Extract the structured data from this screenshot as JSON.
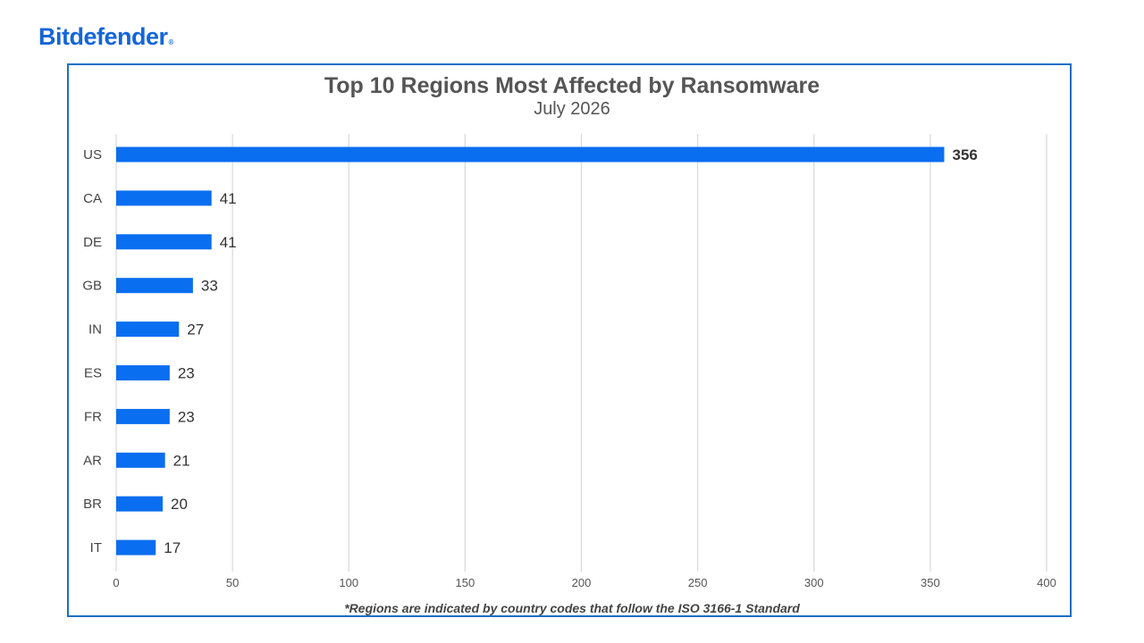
{
  "brand": {
    "name": "Bitdefender",
    "mark": "®",
    "color": "#1466d8"
  },
  "chart_data": {
    "type": "bar",
    "orientation": "horizontal",
    "title": "Top 10 Regions Most Affected by Ransomware",
    "subtitle": "July 2026",
    "categories": [
      "US",
      "CA",
      "DE",
      "GB",
      "IN",
      "ES",
      "FR",
      "AR",
      "BR",
      "IT"
    ],
    "values": [
      356,
      41,
      41,
      33,
      27,
      23,
      23,
      21,
      20,
      17
    ],
    "xlim": [
      0,
      400
    ],
    "xticks": [
      0,
      50,
      100,
      150,
      200,
      250,
      300,
      350,
      400
    ],
    "grid": "vertical",
    "bar_color": "#0a6ef0",
    "footnote": "*Regions are indicated by country codes that follow the ISO 3166-1 Standard"
  }
}
